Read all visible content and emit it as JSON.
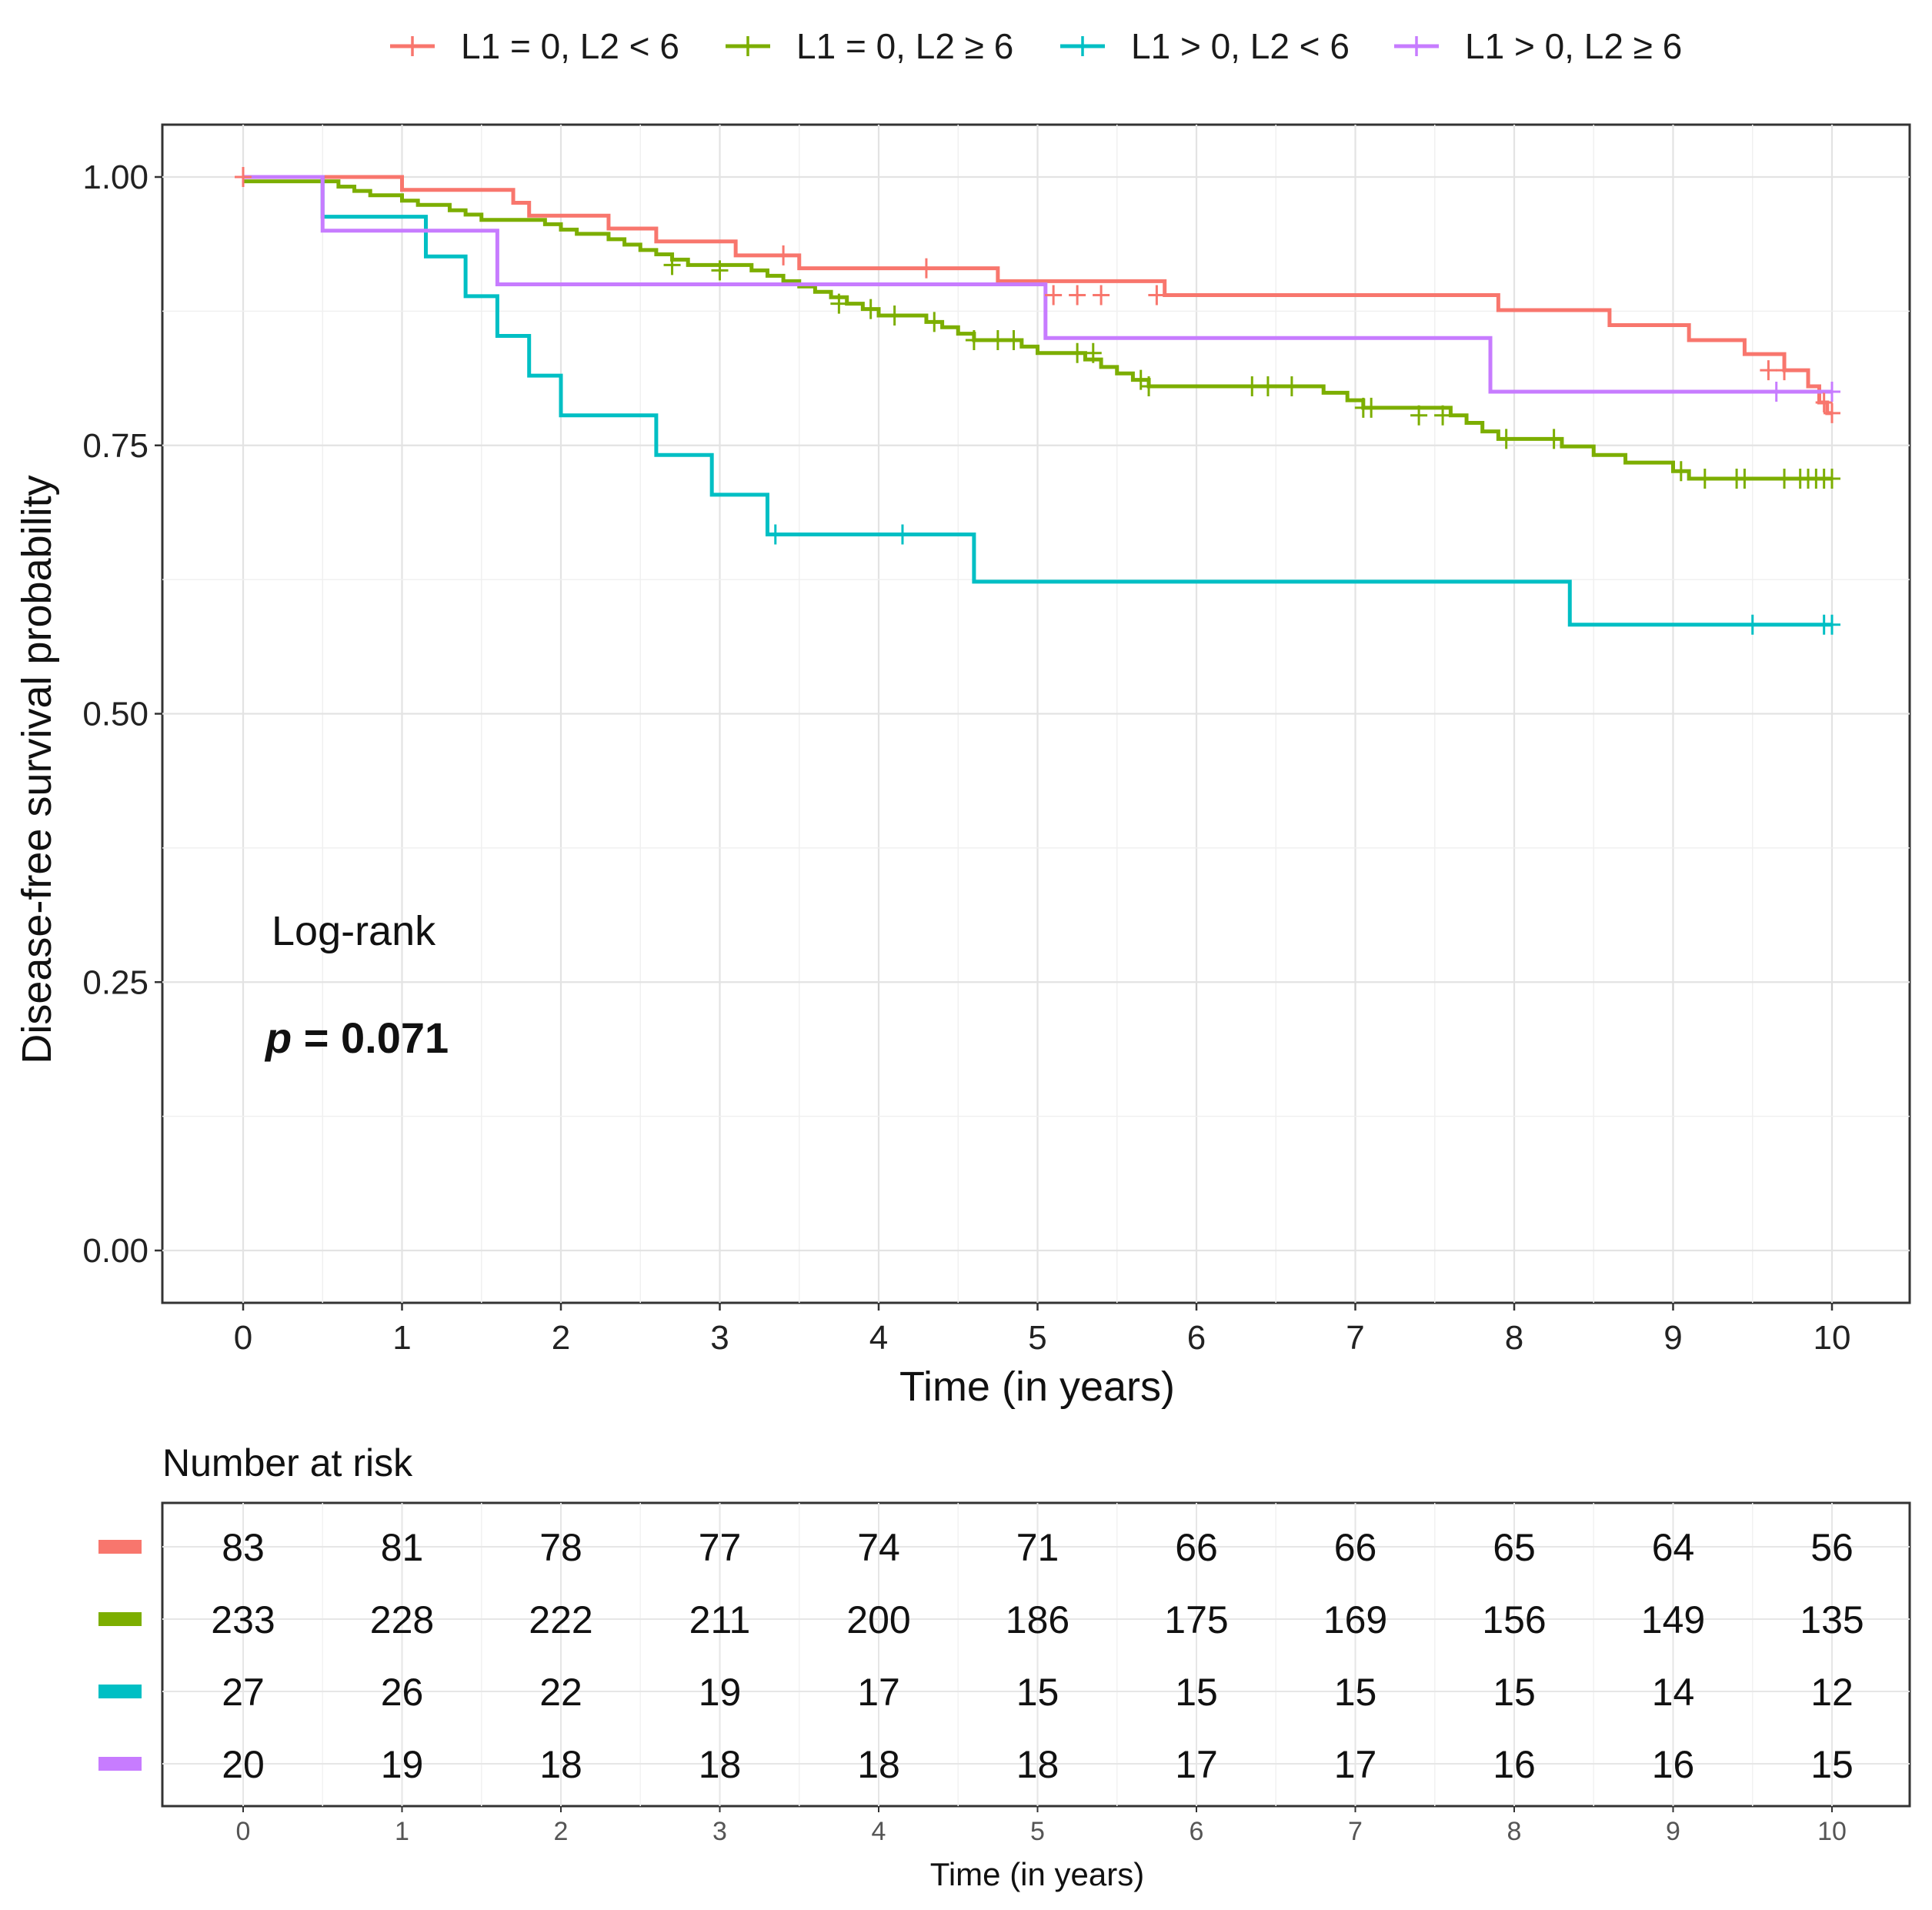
{
  "chart_data": {
    "type": "line",
    "subtype": "kaplan-meier step",
    "xlabel": "Time (in years)",
    "ylabel": "Disease-free survival probability",
    "xlim": [
      0,
      10
    ],
    "ylim": [
      0,
      1
    ],
    "x_ticks": [
      0,
      1,
      2,
      3,
      4,
      5,
      6,
      7,
      8,
      9,
      10
    ],
    "y_ticks": [
      0,
      0.25,
      0.5,
      0.75,
      1
    ],
    "y_tick_labels": [
      "0.00",
      "0.25",
      "0.50",
      "0.75",
      "1.00"
    ],
    "grid": true,
    "legend_position": "top",
    "annotation": {
      "test_label": "Log-rank",
      "p_symbol": "p",
      "p_text": " = 0.071"
    },
    "series": [
      {
        "name": "L1 = 0, L2 < 6",
        "color": "#F8766D",
        "steps": [
          [
            0,
            1.0
          ],
          [
            1.0,
            0.988
          ],
          [
            1.7,
            0.976
          ],
          [
            1.8,
            0.964
          ],
          [
            2.3,
            0.952
          ],
          [
            2.6,
            0.94
          ],
          [
            3.1,
            0.927
          ],
          [
            3.5,
            0.915
          ],
          [
            4.75,
            0.903
          ],
          [
            5.8,
            0.89
          ],
          [
            7.9,
            0.876
          ],
          [
            8.6,
            0.862
          ],
          [
            9.1,
            0.848
          ],
          [
            9.45,
            0.835
          ],
          [
            9.7,
            0.82
          ],
          [
            9.85,
            0.805
          ],
          [
            9.92,
            0.79
          ],
          [
            9.97,
            0.78
          ],
          [
            10.0,
            0.78
          ]
        ],
        "censors": [
          [
            0.0,
            1.0
          ],
          [
            3.4,
            0.927
          ],
          [
            4.3,
            0.915
          ],
          [
            5.1,
            0.89
          ],
          [
            5.25,
            0.89
          ],
          [
            5.4,
            0.89
          ],
          [
            5.75,
            0.89
          ],
          [
            9.6,
            0.82
          ],
          [
            9.7,
            0.82
          ],
          [
            9.95,
            0.79
          ],
          [
            10.0,
            0.78
          ]
        ]
      },
      {
        "name": "L1 = 0, L2 ≥ 6",
        "color": "#7CAE00",
        "steps": [
          [
            0,
            0.996
          ],
          [
            0.6,
            0.991
          ],
          [
            0.7,
            0.987
          ],
          [
            0.8,
            0.983
          ],
          [
            1.0,
            0.978
          ],
          [
            1.1,
            0.974
          ],
          [
            1.3,
            0.969
          ],
          [
            1.4,
            0.965
          ],
          [
            1.5,
            0.96
          ],
          [
            1.9,
            0.956
          ],
          [
            2.0,
            0.951
          ],
          [
            2.1,
            0.947
          ],
          [
            2.3,
            0.942
          ],
          [
            2.4,
            0.937
          ],
          [
            2.5,
            0.932
          ],
          [
            2.6,
            0.928
          ],
          [
            2.7,
            0.923
          ],
          [
            2.8,
            0.918
          ],
          [
            3.2,
            0.913
          ],
          [
            3.3,
            0.908
          ],
          [
            3.4,
            0.903
          ],
          [
            3.5,
            0.898
          ],
          [
            3.6,
            0.893
          ],
          [
            3.7,
            0.888
          ],
          [
            3.8,
            0.882
          ],
          [
            3.9,
            0.877
          ],
          [
            4.0,
            0.871
          ],
          [
            4.3,
            0.865
          ],
          [
            4.4,
            0.86
          ],
          [
            4.5,
            0.854
          ],
          [
            4.6,
            0.848
          ],
          [
            4.9,
            0.842
          ],
          [
            5.0,
            0.836
          ],
          [
            5.3,
            0.83
          ],
          [
            5.4,
            0.823
          ],
          [
            5.5,
            0.817
          ],
          [
            5.6,
            0.811
          ],
          [
            5.7,
            0.805
          ],
          [
            6.8,
            0.799
          ],
          [
            6.95,
            0.792
          ],
          [
            7.05,
            0.785
          ],
          [
            7.6,
            0.778
          ],
          [
            7.7,
            0.771
          ],
          [
            7.8,
            0.763
          ],
          [
            7.9,
            0.756
          ],
          [
            8.3,
            0.749
          ],
          [
            8.5,
            0.741
          ],
          [
            8.7,
            0.734
          ],
          [
            9.0,
            0.726
          ],
          [
            9.1,
            0.719
          ],
          [
            10.0,
            0.719
          ]
        ],
        "censors": [
          [
            2.7,
            0.918
          ],
          [
            3.0,
            0.913
          ],
          [
            3.75,
            0.882
          ],
          [
            3.95,
            0.877
          ],
          [
            4.1,
            0.871
          ],
          [
            4.35,
            0.865
          ],
          [
            4.6,
            0.848
          ],
          [
            4.75,
            0.848
          ],
          [
            4.85,
            0.848
          ],
          [
            5.25,
            0.836
          ],
          [
            5.35,
            0.836
          ],
          [
            5.65,
            0.811
          ],
          [
            5.7,
            0.805
          ],
          [
            6.35,
            0.805
          ],
          [
            6.45,
            0.805
          ],
          [
            6.6,
            0.805
          ],
          [
            7.05,
            0.785
          ],
          [
            7.1,
            0.785
          ],
          [
            7.4,
            0.778
          ],
          [
            7.55,
            0.778
          ],
          [
            7.95,
            0.756
          ],
          [
            8.25,
            0.756
          ],
          [
            9.05,
            0.726
          ],
          [
            9.2,
            0.719
          ],
          [
            9.4,
            0.719
          ],
          [
            9.45,
            0.719
          ],
          [
            9.7,
            0.719
          ],
          [
            9.8,
            0.719
          ],
          [
            9.85,
            0.719
          ],
          [
            9.9,
            0.719
          ],
          [
            9.95,
            0.719
          ],
          [
            10.0,
            0.719
          ]
        ]
      },
      {
        "name": "L1 > 0, L2 < 6",
        "color": "#00BFC4",
        "steps": [
          [
            0,
            1.0
          ],
          [
            0.5,
            0.963
          ],
          [
            1.15,
            0.926
          ],
          [
            1.4,
            0.889
          ],
          [
            1.6,
            0.852
          ],
          [
            1.8,
            0.815
          ],
          [
            2.0,
            0.778
          ],
          [
            2.6,
            0.741
          ],
          [
            2.95,
            0.704
          ],
          [
            3.3,
            0.667
          ],
          [
            4.6,
            0.623
          ],
          [
            8.35,
            0.583
          ],
          [
            10.0,
            0.583
          ]
        ],
        "censors": [
          [
            3.35,
            0.667
          ],
          [
            4.15,
            0.667
          ],
          [
            9.5,
            0.583
          ],
          [
            9.95,
            0.583
          ],
          [
            10.0,
            0.583
          ]
        ]
      },
      {
        "name": "L1 > 0, L2 ≥ 6",
        "color": "#C77CFF",
        "steps": [
          [
            0,
            1.0
          ],
          [
            0.5,
            0.95
          ],
          [
            1.6,
            0.9
          ],
          [
            5.05,
            0.85
          ],
          [
            7.85,
            0.8
          ],
          [
            10.0,
            0.8
          ]
        ],
        "censors": [
          [
            9.65,
            0.8
          ],
          [
            10.0,
            0.8
          ]
        ]
      }
    ],
    "risk_table": {
      "title": "Number at risk",
      "xlabel": "Time (in years)",
      "times": [
        0,
        1,
        2,
        3,
        4,
        5,
        6,
        7,
        8,
        9,
        10
      ],
      "rows": [
        {
          "color": "#F8766D",
          "values": [
            83,
            81,
            78,
            77,
            74,
            71,
            66,
            66,
            65,
            64,
            56
          ]
        },
        {
          "color": "#7CAE00",
          "values": [
            233,
            228,
            222,
            211,
            200,
            186,
            175,
            169,
            156,
            149,
            135
          ]
        },
        {
          "color": "#00BFC4",
          "values": [
            27,
            26,
            22,
            19,
            17,
            15,
            15,
            15,
            15,
            14,
            12
          ]
        },
        {
          "color": "#C77CFF",
          "values": [
            20,
            19,
            18,
            18,
            18,
            18,
            17,
            17,
            16,
            16,
            15
          ]
        }
      ]
    }
  }
}
